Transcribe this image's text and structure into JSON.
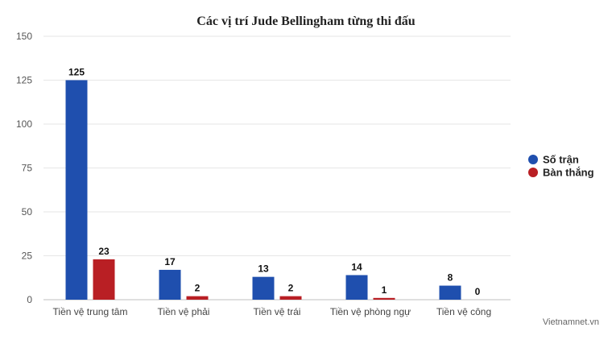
{
  "chart_data": {
    "type": "bar",
    "title": "Các vị trí Jude Bellingham từng thi đấu",
    "categories": [
      "Tiền vệ trung tâm",
      "Tiền vệ phải",
      "Tiền vệ trái",
      "Tiền vệ phòng ngự",
      "Tiền vệ công"
    ],
    "series": [
      {
        "name": "Số trận",
        "color": "#1f4fae",
        "values": [
          125,
          17,
          13,
          14,
          8
        ]
      },
      {
        "name": "Bàn thắng",
        "color": "#b91f24",
        "values": [
          23,
          2,
          2,
          1,
          0
        ]
      }
    ],
    "yticks": [
      0,
      25,
      50,
      75,
      100,
      125,
      150
    ],
    "ylim": [
      0,
      150
    ],
    "grid": true,
    "legend": "right",
    "xlabel": "",
    "ylabel": ""
  },
  "credit": "Vietnamnet.vn"
}
